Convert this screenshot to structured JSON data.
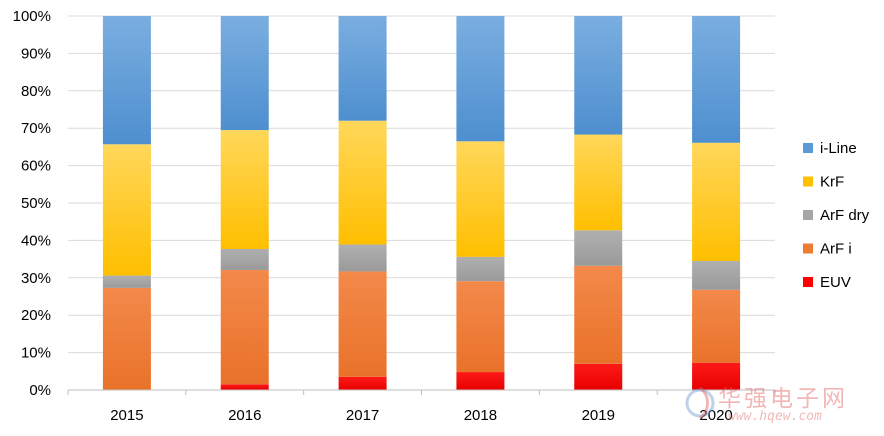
{
  "chart_data": {
    "type": "bar",
    "stacked": true,
    "categories": [
      "2015",
      "2016",
      "2017",
      "2018",
      "2019",
      "2020"
    ],
    "series": [
      {
        "name": "EUV",
        "color": "#ff0000",
        "values": [
          0.0,
          1.5,
          3.5,
          4.8,
          7.0,
          7.3
        ]
      },
      {
        "name": "ArF i",
        "color": "#ed7d31",
        "values": [
          27.3,
          30.6,
          28.2,
          24.3,
          26.2,
          19.5
        ]
      },
      {
        "name": "ArF dry",
        "color": "#a5a5a5",
        "values": [
          3.3,
          5.6,
          7.2,
          6.5,
          9.5,
          7.7
        ]
      },
      {
        "name": "KrF",
        "color": "#ffc000",
        "values": [
          35.1,
          31.8,
          33.1,
          30.9,
          25.6,
          31.6
        ]
      },
      {
        "name": "i-Line",
        "color": "#5b9bd5",
        "values": [
          34.3,
          30.5,
          28.0,
          33.5,
          31.7,
          33.9
        ]
      }
    ],
    "y_ticks": [
      "0%",
      "10%",
      "20%",
      "30%",
      "40%",
      "50%",
      "60%",
      "70%",
      "80%",
      "90%",
      "100%"
    ],
    "ylim": [
      0,
      100
    ],
    "grid": true,
    "legend": {
      "position": "right",
      "order": [
        "i-Line",
        "KrF",
        "ArF dry",
        "ArF i",
        "EUV"
      ]
    },
    "title": "",
    "xlabel": "",
    "ylabel": ""
  },
  "watermark": {
    "brand": "华强电子网",
    "url": "www.hqew.com"
  }
}
